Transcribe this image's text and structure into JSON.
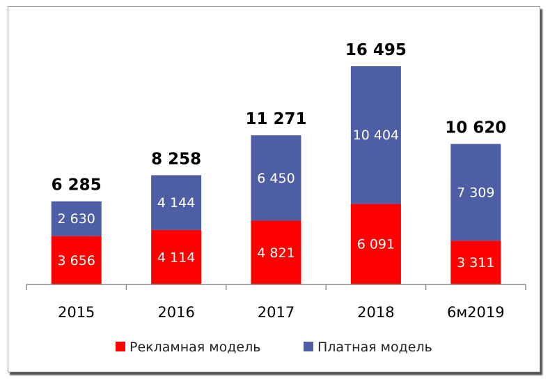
{
  "chart_data": {
    "type": "bar",
    "stacked": true,
    "categories": [
      "2015",
      "2016",
      "2017",
      "2018",
      "6м2019"
    ],
    "series": [
      {
        "name": "Рекламная модель",
        "color": "#ff0000",
        "values": [
          3656,
          4114,
          4821,
          6091,
          3311
        ],
        "labels": [
          "3 656",
          "4 114",
          "4 821",
          "6 091",
          "3 311"
        ]
      },
      {
        "name": "Платная модель",
        "color": "#4e5ea5",
        "values": [
          2630,
          4144,
          6450,
          10404,
          7309
        ],
        "labels": [
          "2 630",
          "4 144",
          "6 450",
          "10 404",
          "7 309"
        ]
      }
    ],
    "totals": [
      6285,
      8258,
      11271,
      16495,
      10620
    ],
    "total_labels": [
      "6 285",
      "8 258",
      "11 271",
      "16 495",
      "10 620"
    ],
    "ylim": [
      0,
      16495
    ],
    "grid": false,
    "legend_position": "bottom"
  }
}
